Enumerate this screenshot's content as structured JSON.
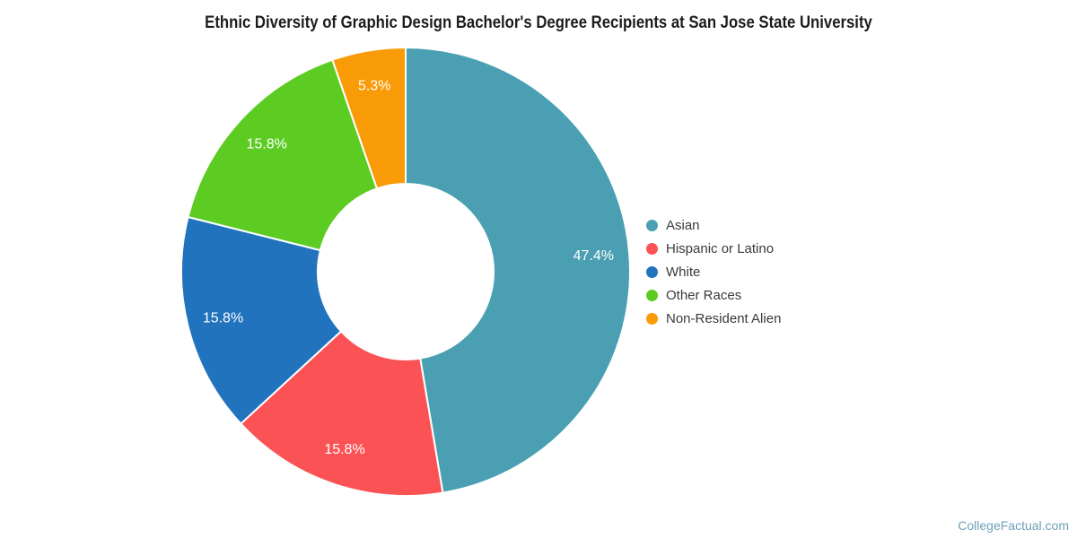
{
  "chart_data": {
    "type": "pie",
    "donut": true,
    "inner_radius_ratio": 0.39,
    "start_angle_deg": 0,
    "direction": "clockwise",
    "legend_position": "right",
    "title": "Ethnic Diversity of Graphic Design Bachelor's Degree Recipients at San Jose State University",
    "categories": [
      "Asian",
      "Hispanic or Latino",
      "White",
      "Other Races",
      "Non-Resident Alien"
    ],
    "values": [
      47.4,
      15.8,
      15.8,
      15.8,
      5.3
    ],
    "labels": [
      "47.4%",
      "15.8%",
      "15.8%",
      "15.8%",
      "5.3%"
    ],
    "colors": [
      "#4AA0B2",
      "#FB5355",
      "#2173BD",
      "#5CCB22",
      "#F99B06"
    ],
    "label_color": "#ffffff"
  },
  "watermark": {
    "text": "CollegeFactual.com",
    "color": "#6FA0B8"
  }
}
